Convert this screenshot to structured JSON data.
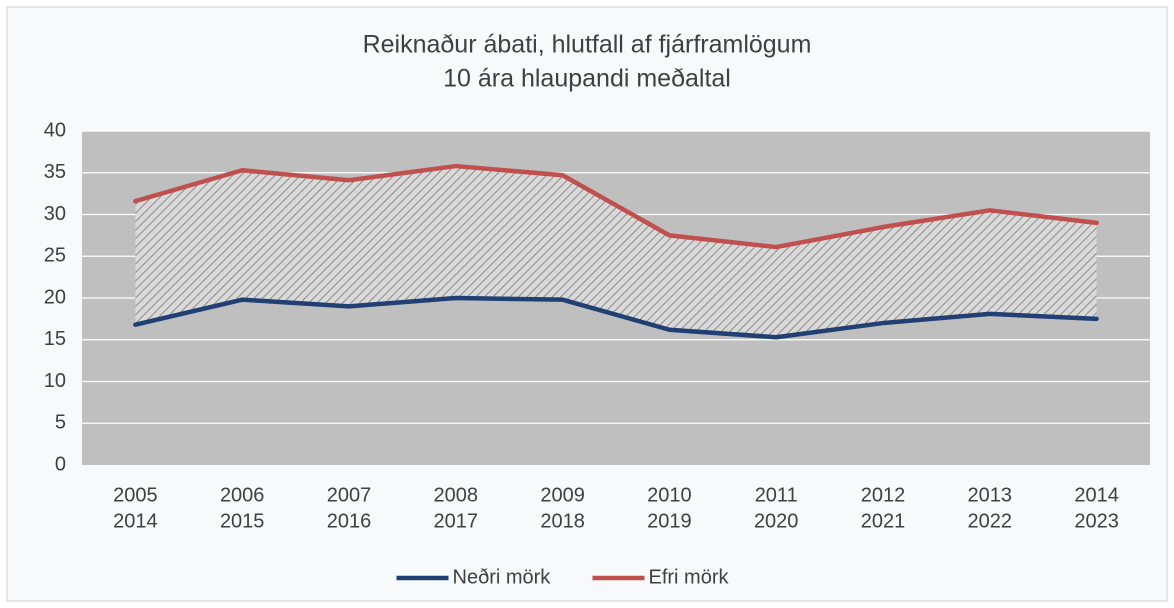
{
  "chart_data": {
    "type": "line",
    "title": "Reiknaður ábati, hlutfall af fjárframlögum",
    "subtitle": "10 ára hlaupandi meðaltal",
    "categories": [
      [
        "2005",
        "2014"
      ],
      [
        "2006",
        "2015"
      ],
      [
        "2007",
        "2016"
      ],
      [
        "2008",
        "2017"
      ],
      [
        "2009",
        "2018"
      ],
      [
        "2010",
        "2019"
      ],
      [
        "2011",
        "2020"
      ],
      [
        "2012",
        "2021"
      ],
      [
        "2013",
        "2022"
      ],
      [
        "2014",
        "2023"
      ]
    ],
    "series": [
      {
        "name": "Neðri mörk",
        "color": "#203f72",
        "values": [
          16.8,
          19.8,
          19.0,
          20.0,
          19.8,
          16.2,
          15.3,
          17.0,
          18.1,
          17.5
        ]
      },
      {
        "name": "Efri mörk",
        "color": "#c0504d",
        "values": [
          31.6,
          35.3,
          34.1,
          35.8,
          34.7,
          27.5,
          26.1,
          28.5,
          30.5,
          29.0
        ]
      }
    ],
    "ylim": [
      0,
      40
    ],
    "yticks": [
      0,
      5,
      10,
      15,
      20,
      25,
      30,
      35,
      40
    ],
    "grid": true,
    "fill_between": true,
    "legend": "bottom"
  }
}
